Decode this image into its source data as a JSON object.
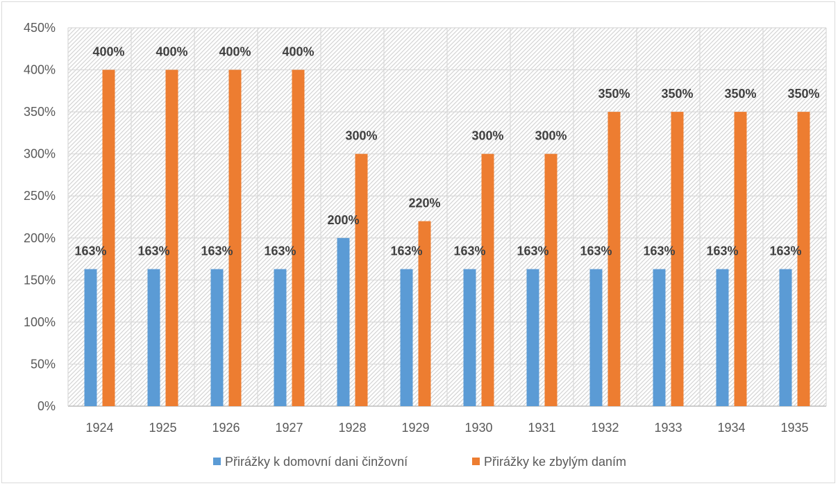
{
  "chart_data": {
    "type": "bar",
    "title": "",
    "xlabel": "",
    "ylabel": "",
    "categories": [
      "1924",
      "1925",
      "1926",
      "1927",
      "1928",
      "1929",
      "1930",
      "1931",
      "1932",
      "1933",
      "1934",
      "1935"
    ],
    "series": [
      {
        "name": "Přirážky k domovní dani činžovní",
        "color": "#5b9bd5",
        "values": [
          163,
          163,
          163,
          163,
          200,
          163,
          163,
          163,
          163,
          163,
          163,
          163
        ],
        "labels": [
          "163%",
          "163%",
          "163%",
          "163%",
          "200%",
          "163%",
          "163%",
          "163%",
          "163%",
          "163%",
          "163%",
          "163%"
        ]
      },
      {
        "name": "Přirážky ke zbylým daním",
        "color": "#ed7d31",
        "values": [
          400,
          400,
          400,
          400,
          300,
          220,
          300,
          300,
          350,
          350,
          350,
          350
        ],
        "labels": [
          "400%",
          "400%",
          "400%",
          "400%",
          "300%",
          "220%",
          "300%",
          "300%",
          "350%",
          "350%",
          "350%",
          "350%"
        ]
      }
    ],
    "ylim": [
      0,
      450
    ],
    "yticks": [
      0,
      50,
      100,
      150,
      200,
      250,
      300,
      350,
      400,
      450
    ],
    "ytick_labels": [
      "0%",
      "50%",
      "100%",
      "150%",
      "200%",
      "250%",
      "300%",
      "350%",
      "400%",
      "450%"
    ],
    "grid": true,
    "legend_position": "bottom"
  }
}
